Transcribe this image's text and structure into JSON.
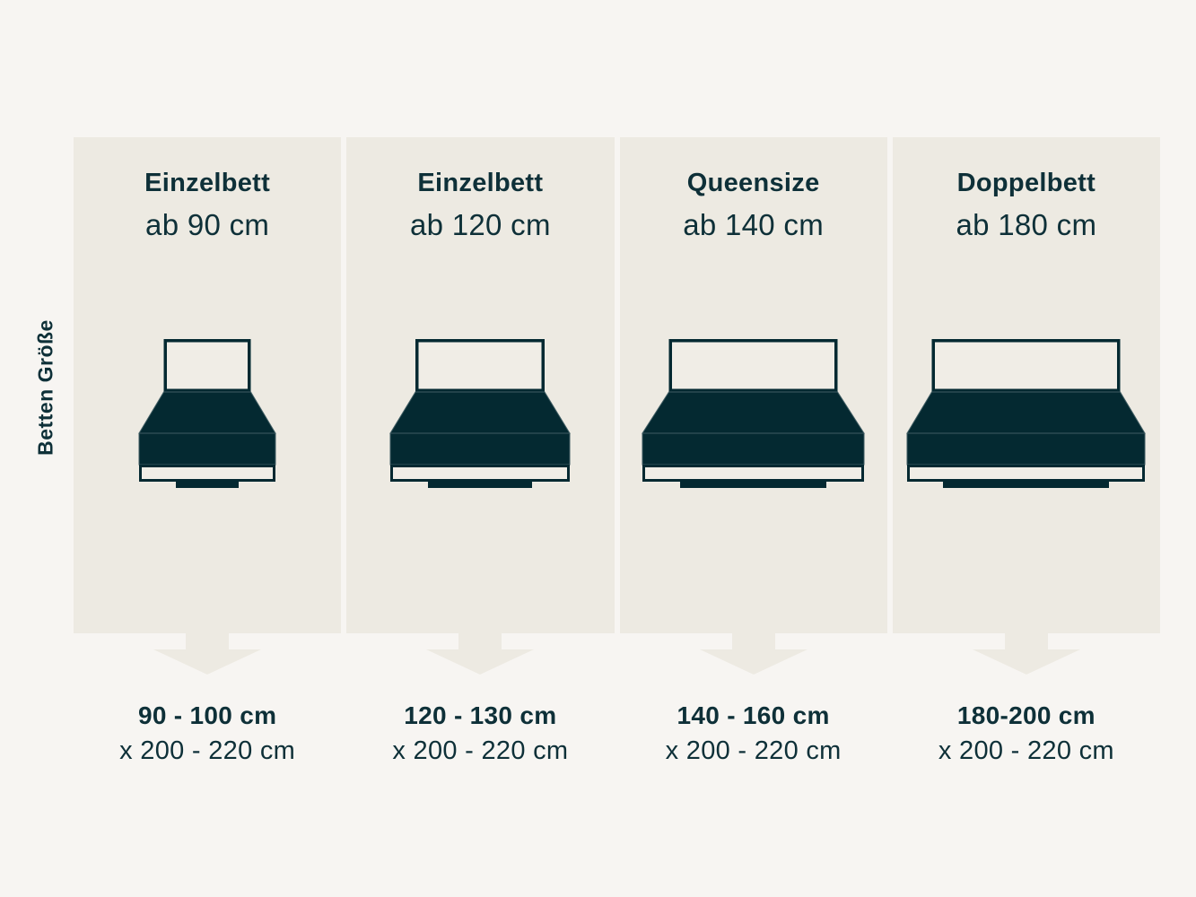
{
  "side_label": "Betten Größe",
  "colors": {
    "background": "#f7f5f2",
    "panel": "#edeae2",
    "dark": "#042931",
    "text": "#0e3038",
    "bed_light": "#f0ede6",
    "seam": "#3f5c62"
  },
  "arrow_icon": "arrow-down",
  "columns": [
    {
      "title": "Einzelbett",
      "subtitle": "ab 90 cm",
      "size_width": "90 - 100 cm",
      "size_length": "x 200 - 220 cm",
      "bed": {
        "headboard_width": 97,
        "mattress_width": 152,
        "foot_width": 70
      }
    },
    {
      "title": "Einzelbett",
      "subtitle": "ab 120 cm",
      "size_width": "120 - 130 cm",
      "size_length": "x 200 - 220 cm",
      "bed": {
        "headboard_width": 144,
        "mattress_width": 200,
        "foot_width": 116
      }
    },
    {
      "title": "Queensize",
      "subtitle": "ab 140 cm",
      "size_width": "140 - 160 cm",
      "size_length": "x 200 - 220 cm",
      "bed": {
        "headboard_width": 188,
        "mattress_width": 247,
        "foot_width": 163
      }
    },
    {
      "title": "Doppelbett",
      "subtitle": "ab 180 cm",
      "size_width": "180-200 cm",
      "size_length": "x 200 - 220 cm",
      "bed": {
        "headboard_width": 210,
        "mattress_width": 265,
        "foot_width": 185
      }
    }
  ]
}
